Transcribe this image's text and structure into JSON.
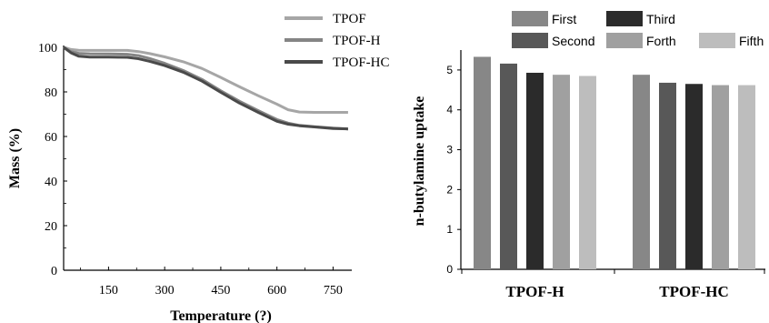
{
  "chart_data": [
    {
      "type": "line",
      "xlabel": "Temperature (?)",
      "ylabel": "Mass (%)",
      "xlim": [
        30,
        800
      ],
      "ylim": [
        0,
        100
      ],
      "xticks": [
        "150",
        "300",
        "450",
        "600",
        "750"
      ],
      "yticks": [
        "0",
        "20",
        "40",
        "60",
        "80",
        "100"
      ],
      "legend_position": "top-right",
      "series": [
        {
          "name": "TPOF",
          "color": "#a6a6a6",
          "x": [
            30,
            50,
            70,
            100,
            150,
            200,
            230,
            260,
            300,
            350,
            400,
            450,
            500,
            550,
            600,
            630,
            660,
            700,
            750,
            790
          ],
          "y": [
            100,
            99.0,
            98.7,
            98.6,
            98.6,
            98.6,
            98.1,
            97.2,
            95.7,
            93.5,
            90.5,
            86.5,
            82.3,
            78.3,
            74.5,
            72.0,
            71.0,
            70.8,
            70.8,
            70.8
          ]
        },
        {
          "name": "TPOF-H",
          "color": "#858585",
          "x": [
            30,
            50,
            70,
            100,
            150,
            200,
            230,
            260,
            300,
            350,
            400,
            450,
            500,
            550,
            600,
            630,
            660,
            700,
            750,
            790
          ],
          "y": [
            100,
            98.0,
            97.3,
            97.1,
            97.0,
            96.9,
            96.3,
            95.0,
            92.8,
            89.6,
            85.6,
            80.5,
            75.8,
            71.6,
            67.6,
            66.0,
            65.0,
            64.4,
            63.8,
            63.4
          ]
        },
        {
          "name": "TPOF-HC",
          "color": "#4a4a4a",
          "x": [
            30,
            50,
            70,
            100,
            150,
            200,
            230,
            260,
            300,
            350,
            400,
            450,
            500,
            550,
            600,
            630,
            660,
            700,
            750,
            790
          ],
          "y": [
            100,
            97.5,
            96.0,
            95.6,
            95.6,
            95.5,
            94.9,
            93.7,
            91.8,
            88.8,
            84.8,
            79.8,
            75.0,
            70.8,
            66.8,
            65.5,
            64.8,
            64.3,
            63.6,
            63.4
          ]
        }
      ]
    },
    {
      "type": "bar",
      "ylabel": "n-butylamine uptake",
      "ylim": [
        0,
        5.5
      ],
      "yticks": [
        "0",
        "1",
        "2",
        "3",
        "4",
        "5"
      ],
      "categories": [
        "TPOF-H",
        "TPOF-HC"
      ],
      "legend_position": "top",
      "series": [
        {
          "name": "First",
          "color": "#878787",
          "values": [
            5.33,
            4.88
          ]
        },
        {
          "name": "Second",
          "color": "#585858",
          "values": [
            5.16,
            4.68
          ]
        },
        {
          "name": "Third",
          "color": "#2b2b2b",
          "values": [
            4.93,
            4.65
          ]
        },
        {
          "name": "Forth",
          "color": "#a0a0a0",
          "values": [
            4.88,
            4.62
          ]
        },
        {
          "name": "Fifth",
          "color": "#bdbdbd",
          "values": [
            4.85,
            4.62
          ]
        }
      ]
    }
  ]
}
